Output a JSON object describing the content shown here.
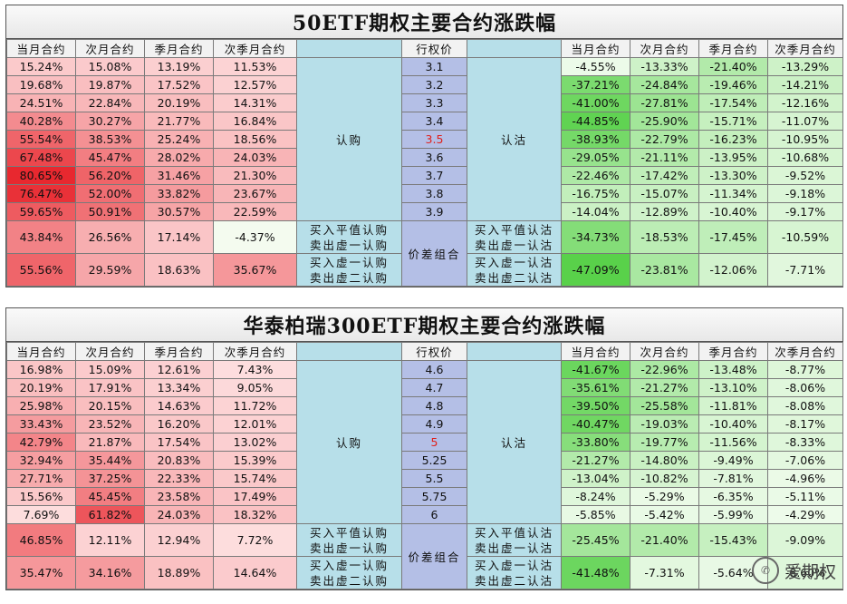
{
  "panels": [
    {
      "title": "50ETF期权主要合约涨跌幅",
      "call_headers": [
        "当月合约",
        "次月合约",
        "季月合约",
        "次季月合约"
      ],
      "strike_header": "行权价",
      "put_headers": [
        "当月合约",
        "次月合约",
        "季月合约",
        "次季月合约"
      ],
      "call_label": "认购",
      "put_label": "认沽",
      "atm_strike": "3.5",
      "rows": [
        {
          "strike": "3.1",
          "calls": [
            "15.24%",
            "15.08%",
            "13.19%",
            "11.53%"
          ],
          "puts": [
            "-4.55%",
            "-13.33%",
            "-21.40%",
            "-13.29%"
          ]
        },
        {
          "strike": "3.2",
          "calls": [
            "19.68%",
            "19.87%",
            "17.52%",
            "12.57%"
          ],
          "puts": [
            "-37.21%",
            "-24.84%",
            "-19.46%",
            "-14.21%"
          ]
        },
        {
          "strike": "3.3",
          "calls": [
            "24.51%",
            "22.84%",
            "20.19%",
            "14.31%"
          ],
          "puts": [
            "-41.00%",
            "-27.81%",
            "-17.54%",
            "-12.16%"
          ]
        },
        {
          "strike": "3.4",
          "calls": [
            "40.28%",
            "30.27%",
            "21.77%",
            "16.84%"
          ],
          "puts": [
            "-44.85%",
            "-25.90%",
            "-15.71%",
            "-11.07%"
          ]
        },
        {
          "strike": "3.5",
          "calls": [
            "55.54%",
            "38.53%",
            "25.24%",
            "18.56%"
          ],
          "puts": [
            "-38.93%",
            "-22.79%",
            "-16.23%",
            "-10.95%"
          ]
        },
        {
          "strike": "3.6",
          "calls": [
            "67.48%",
            "45.47%",
            "28.02%",
            "24.03%"
          ],
          "puts": [
            "-29.05%",
            "-21.11%",
            "-13.95%",
            "-10.68%"
          ]
        },
        {
          "strike": "3.7",
          "calls": [
            "80.65%",
            "56.20%",
            "31.46%",
            "21.30%"
          ],
          "puts": [
            "-22.46%",
            "-17.42%",
            "-13.30%",
            "-9.52%"
          ]
        },
        {
          "strike": "3.8",
          "calls": [
            "76.47%",
            "52.00%",
            "33.82%",
            "23.67%"
          ],
          "puts": [
            "-16.75%",
            "-15.07%",
            "-11.34%",
            "-9.18%"
          ]
        },
        {
          "strike": "3.9",
          "calls": [
            "59.65%",
            "50.91%",
            "30.57%",
            "22.59%"
          ],
          "puts": [
            "-14.04%",
            "-12.89%",
            "-10.40%",
            "-9.17%"
          ]
        }
      ],
      "spread_label": "价差组合",
      "combos": [
        {
          "call_label": [
            "买入平值认购",
            "卖出虚一认购"
          ],
          "put_label": [
            "买入平值认沽",
            "卖出虚一认沽"
          ],
          "calls": [
            "43.84%",
            "26.56%",
            "17.14%",
            "-4.37%"
          ],
          "puts": [
            "-34.73%",
            "-18.53%",
            "-17.45%",
            "-10.59%"
          ]
        },
        {
          "call_label": [
            "买入虚一认购",
            "卖出虚二认购"
          ],
          "put_label": [
            "买入虚一认沽",
            "卖出虚二认沽"
          ],
          "calls": [
            "55.56%",
            "29.59%",
            "18.63%",
            "35.67%"
          ],
          "puts": [
            "-47.09%",
            "-23.81%",
            "-12.06%",
            "-7.71%"
          ]
        }
      ]
    },
    {
      "title": "华泰柏瑞300ETF期权主要合约涨跌幅",
      "call_headers": [
        "当月合约",
        "次月合约",
        "季月合约",
        "次季月合约"
      ],
      "strike_header": "行权价",
      "put_headers": [
        "当月合约",
        "次月合约",
        "季月合约",
        "次季月合约"
      ],
      "call_label": "认购",
      "put_label": "认沽",
      "atm_strike": "5",
      "rows": [
        {
          "strike": "4.6",
          "calls": [
            "16.98%",
            "15.09%",
            "12.61%",
            "7.43%"
          ],
          "puts": [
            "-41.67%",
            "-22.96%",
            "-13.48%",
            "-8.77%"
          ]
        },
        {
          "strike": "4.7",
          "calls": [
            "20.19%",
            "17.91%",
            "13.34%",
            "9.05%"
          ],
          "puts": [
            "-35.61%",
            "-21.27%",
            "-13.10%",
            "-8.06%"
          ]
        },
        {
          "strike": "4.8",
          "calls": [
            "25.98%",
            "20.15%",
            "14.63%",
            "11.72%"
          ],
          "puts": [
            "-39.50%",
            "-25.58%",
            "-11.81%",
            "-8.08%"
          ]
        },
        {
          "strike": "4.9",
          "calls": [
            "33.43%",
            "23.52%",
            "16.20%",
            "12.01%"
          ],
          "puts": [
            "-40.47%",
            "-19.03%",
            "-10.40%",
            "-8.17%"
          ]
        },
        {
          "strike": "5",
          "calls": [
            "42.79%",
            "21.87%",
            "17.54%",
            "13.02%"
          ],
          "puts": [
            "-33.80%",
            "-19.77%",
            "-11.56%",
            "-8.33%"
          ]
        },
        {
          "strike": "5.25",
          "calls": [
            "32.94%",
            "35.44%",
            "20.83%",
            "15.39%"
          ],
          "puts": [
            "-21.27%",
            "-14.80%",
            "-9.49%",
            "-7.06%"
          ]
        },
        {
          "strike": "5.5",
          "calls": [
            "27.71%",
            "37.25%",
            "22.33%",
            "15.74%"
          ],
          "puts": [
            "-13.04%",
            "-10.82%",
            "-7.81%",
            "-4.96%"
          ]
        },
        {
          "strike": "5.75",
          "calls": [
            "15.56%",
            "45.45%",
            "23.58%",
            "17.49%"
          ],
          "puts": [
            "-8.24%",
            "-5.29%",
            "-6.35%",
            "-5.11%"
          ]
        },
        {
          "strike": "6",
          "calls": [
            "7.69%",
            "61.82%",
            "24.03%",
            "18.32%"
          ],
          "puts": [
            "-5.85%",
            "-5.42%",
            "-5.99%",
            "-4.29%"
          ]
        }
      ],
      "spread_label": "价差组合",
      "combos": [
        {
          "call_label": [
            "买入平值认购",
            "卖出虚一认购"
          ],
          "put_label": [
            "买入平值认沽",
            "卖出虚一认沽"
          ],
          "calls": [
            "46.85%",
            "12.11%",
            "12.94%",
            "7.72%"
          ],
          "puts": [
            "-25.45%",
            "-21.40%",
            "-15.43%",
            "-9.09%"
          ]
        },
        {
          "call_label": [
            "买入虚一认购",
            "卖出虚二认购"
          ],
          "put_label": [
            "买入虚一认沽",
            "卖出虚二认沽"
          ],
          "calls": [
            "35.47%",
            "34.16%",
            "18.89%",
            "14.64%"
          ],
          "puts": [
            "-41.48%",
            "-7.31%",
            "-5.64%",
            "-8.60%"
          ]
        }
      ]
    }
  ],
  "watermark": {
    "text": "爱期权",
    "icon": "wechat-logo-icon"
  },
  "colors": {
    "call_heat": "#e8282f",
    "put_heat": "#59d14a",
    "label_col": "#b7dfe9",
    "strike_col": "#b4bfe6",
    "atm_text": "#e0201b"
  }
}
